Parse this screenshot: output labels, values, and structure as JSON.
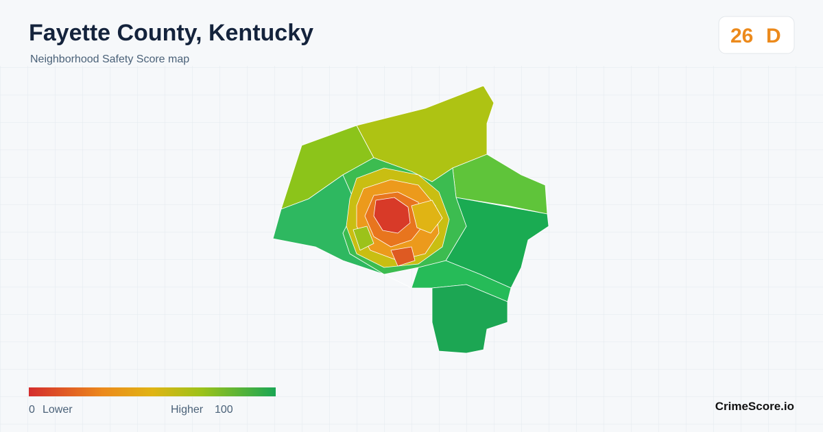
{
  "header": {
    "title": "Fayette County, Kentucky",
    "subtitle": "Neighborhood Safety Score map"
  },
  "badge": {
    "score": 26,
    "grade": "D"
  },
  "legend": {
    "min": 0,
    "min_label": "Lower",
    "max_label": "Higher",
    "max": 100
  },
  "footer": {
    "brand": "CrimeScore.io"
  }
}
